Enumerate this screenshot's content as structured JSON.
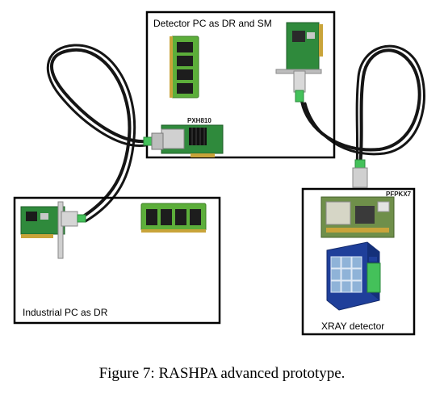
{
  "boxes": {
    "detector_pc": "Detector PC as DR and SM",
    "industrial_pc": "Industrial PC as DR",
    "xray": "XRAY detector"
  },
  "chips": {
    "pxh810": "PXH810",
    "pfpkx7": "PFPKX7"
  },
  "caption": "Figure 7: RASHPA advanced prototype.",
  "colors": {
    "pcb_green": "#2f8a3c",
    "memory_green": "#5cae3a",
    "memory_chip": "#1d1d1d",
    "cable": "#151515",
    "connector_green": "#44c15a",
    "detector_blue": "#1f3f9a",
    "detector_tile": "#8fb3d8"
  }
}
